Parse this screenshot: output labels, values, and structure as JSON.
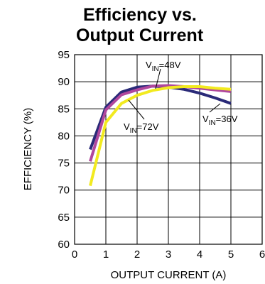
{
  "chart_data": {
    "type": "line",
    "title_lines": [
      "Efficiency vs.",
      "Output Current"
    ],
    "xlabel": "OUTPUT CURRENT (A)",
    "ylabel": "EFFICIENCY (%)",
    "xlim": [
      0,
      6
    ],
    "ylim": [
      60,
      95
    ],
    "x_ticks": [
      "0",
      "1",
      "2",
      "3",
      "4",
      "5",
      "6"
    ],
    "y_ticks": [
      "60",
      "65",
      "70",
      "75",
      "80",
      "85",
      "90",
      "95"
    ],
    "grid": true,
    "series": [
      {
        "color": "#2a2a78",
        "x": [
          0.5,
          1.0,
          1.5,
          2.0,
          2.5,
          3.0,
          3.5,
          4.0,
          4.5,
          5.0
        ],
        "values": [
          77.5,
          85.3,
          88.1,
          89.0,
          89.2,
          89.0,
          88.6,
          87.9,
          87.0,
          86.0
        ]
      },
      {
        "color": "#b0479d",
        "x": [
          0.5,
          1.0,
          1.5,
          2.0,
          2.5,
          3.0,
          3.5,
          4.0,
          4.5,
          5.0
        ],
        "values": [
          75.3,
          84.8,
          87.6,
          88.5,
          89.2,
          89.3,
          89.1,
          88.8,
          88.5,
          88.2
        ]
      },
      {
        "color": "#f2ea1f",
        "x": [
          0.5,
          1.0,
          1.5,
          2.0,
          2.5,
          3.0,
          3.5,
          4.0,
          4.5,
          5.0
        ],
        "values": [
          70.8,
          82.5,
          86.0,
          87.5,
          88.4,
          88.9,
          89.1,
          89.1,
          88.8,
          88.6
        ]
      }
    ],
    "annotations": [
      {
        "prefix": "V",
        "sub": "IN",
        "suffix": "=48V"
      },
      {
        "prefix": "V",
        "sub": "IN",
        "suffix": "=72V"
      },
      {
        "prefix": "V",
        "sub": "IN",
        "suffix": "=36V"
      }
    ]
  }
}
